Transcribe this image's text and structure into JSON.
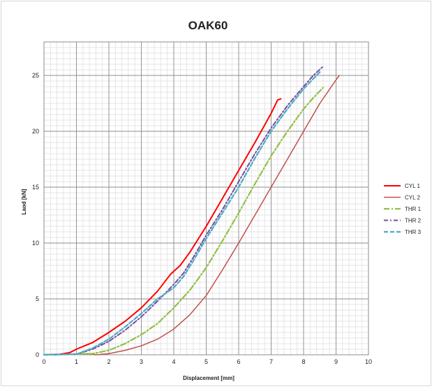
{
  "chart_data": {
    "type": "line",
    "title": "OAK60",
    "xlabel": "Displacement [mm]",
    "ylabel": "Laod [kN]",
    "xlim": [
      0,
      10
    ],
    "ylim": [
      0,
      28
    ],
    "xticks": [
      0,
      1,
      2,
      3,
      4,
      5,
      6,
      7,
      8,
      9,
      10
    ],
    "yticks": [
      0,
      5,
      10,
      15,
      20,
      25
    ],
    "grid": true,
    "legend_position": "right",
    "series": [
      {
        "name": "CYL 1",
        "color": "#ff0000",
        "dash": "solid",
        "width": 2,
        "x": [
          0,
          0.5,
          0.8,
          1.0,
          1.5,
          2.0,
          2.5,
          3.0,
          3.5,
          3.9,
          4.2,
          4.5,
          5.0,
          5.5,
          6.0,
          6.5,
          7.0,
          7.2,
          7.3
        ],
        "y": [
          0,
          0.05,
          0.2,
          0.5,
          1.1,
          2.0,
          3.0,
          4.2,
          5.7,
          7.2,
          8.0,
          9.2,
          11.5,
          14.0,
          16.5,
          19.0,
          21.6,
          22.8,
          22.9
        ]
      },
      {
        "name": "CYL 2",
        "color": "#c0504d",
        "dash": "solid",
        "width": 1.5,
        "x": [
          0,
          1.0,
          1.4,
          1.6,
          2.0,
          2.5,
          3.0,
          3.5,
          4.0,
          4.5,
          5.0,
          5.5,
          6.0,
          6.5,
          7.0,
          7.5,
          8.0,
          8.5,
          9.0,
          9.1
        ],
        "y": [
          0,
          0.05,
          0.1,
          0.0,
          0.1,
          0.4,
          0.8,
          1.4,
          2.3,
          3.6,
          5.3,
          7.6,
          10.0,
          12.5,
          15.0,
          17.5,
          20.0,
          22.5,
          24.6,
          25.0
        ]
      },
      {
        "name": "THR 1",
        "color": "#92c047",
        "dash": "8,3,2,3",
        "width": 2.2,
        "x": [
          0,
          1.0,
          1.5,
          2.0,
          2.5,
          3.0,
          3.5,
          4.0,
          4.5,
          5.0,
          5.5,
          6.0,
          6.5,
          7.0,
          7.5,
          8.0,
          8.3,
          8.6
        ],
        "y": [
          0,
          0.05,
          0.1,
          0.4,
          1.0,
          1.8,
          2.8,
          4.2,
          5.8,
          7.8,
          10.2,
          12.7,
          15.3,
          17.8,
          20.0,
          22.0,
          23.0,
          23.9
        ]
      },
      {
        "name": "THR 2",
        "color": "#7a4e9c",
        "dash": "6,3,2,3",
        "width": 2,
        "x": [
          0,
          1.0,
          1.5,
          2.0,
          2.5,
          3.0,
          3.5,
          4.0,
          4.3,
          4.6,
          5.0,
          5.5,
          6.0,
          6.5,
          7.0,
          7.5,
          8.0,
          8.3,
          8.6
        ],
        "y": [
          0,
          0.05,
          0.5,
          1.2,
          2.2,
          3.4,
          4.8,
          6.3,
          7.3,
          8.7,
          10.7,
          13.0,
          15.5,
          18.0,
          20.3,
          22.3,
          24.0,
          25.0,
          25.8
        ]
      },
      {
        "name": "THR 3",
        "color": "#4aacc6",
        "dash": "6,3",
        "width": 2.2,
        "x": [
          0,
          1.0,
          1.5,
          2.0,
          2.5,
          3.0,
          3.5,
          4.0,
          4.3,
          4.6,
          5.0,
          5.5,
          6.0,
          6.5,
          7.0,
          7.5,
          8.0,
          8.5
        ],
        "y": [
          0,
          0.05,
          0.6,
          1.4,
          2.5,
          3.7,
          5.0,
          6.0,
          7.0,
          8.4,
          10.4,
          12.7,
          15.0,
          17.6,
          20.0,
          22.0,
          23.8,
          25.3
        ]
      }
    ]
  }
}
